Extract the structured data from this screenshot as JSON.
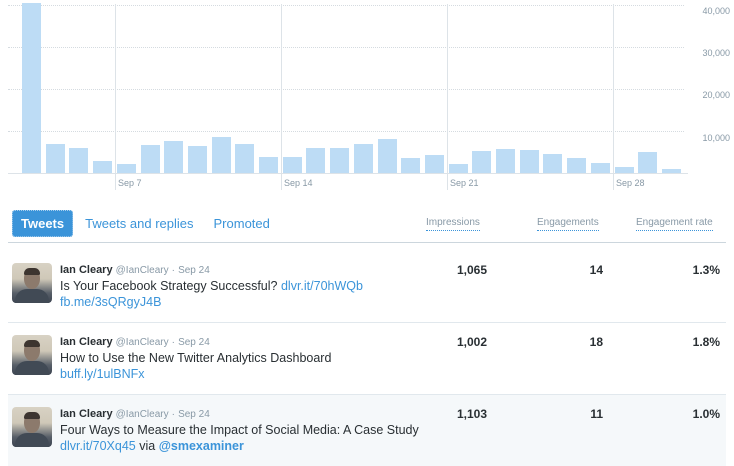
{
  "chart_data": {
    "type": "bar",
    "title": "",
    "xlabel": "",
    "ylabel": "Impressions",
    "ylim": [
      0,
      40000
    ],
    "y_ticks": [
      "10,000",
      "20,000",
      "30,000",
      "40,000"
    ],
    "x_tick_labels": [
      "Sep 7",
      "Sep 14",
      "Sep 21",
      "Sep 28"
    ],
    "grid": true,
    "categories": [
      "Sep 3",
      "Sep 4",
      "Sep 5",
      "Sep 6",
      "Sep 7",
      "Sep 8",
      "Sep 9",
      "Sep 10",
      "Sep 11",
      "Sep 12",
      "Sep 13",
      "Sep 14",
      "Sep 15",
      "Sep 16",
      "Sep 17",
      "Sep 18",
      "Sep 19",
      "Sep 20",
      "Sep 21",
      "Sep 22",
      "Sep 23",
      "Sep 24",
      "Sep 25",
      "Sep 26",
      "Sep 27",
      "Sep 28",
      "Sep 29",
      "Sep 30"
    ],
    "values": [
      40500,
      6900,
      6000,
      2900,
      2200,
      6700,
      7600,
      6500,
      8600,
      6900,
      3900,
      3800,
      6000,
      6000,
      7000,
      8200,
      3700,
      4400,
      2200,
      5300,
      5800,
      5600,
      4600,
      3700,
      2500,
      1500,
      5000,
      1000
    ]
  },
  "chart": {
    "y_labels": [
      "40,000",
      "30,000",
      "20,000",
      "10,000"
    ],
    "x_labels": [
      "Sep 7",
      "Sep 14",
      "Sep 21",
      "Sep 28"
    ]
  },
  "tabs": [
    {
      "label": "Tweets",
      "active": true
    },
    {
      "label": "Tweets and replies",
      "active": false
    },
    {
      "label": "Promoted",
      "active": false
    }
  ],
  "columns": {
    "impressions": "Impressions",
    "engagements": "Engagements",
    "rate": "Engagement rate"
  },
  "tweets": [
    {
      "name": "Ian Cleary",
      "handle": "@IanCleary",
      "sep": "·",
      "date": "Sep 24",
      "text": "Is Your Facebook Strategy Successful?",
      "link1": "dlvr.it/70hWQb",
      "link2": "fb.me/3sQRgyJ4B",
      "impressions": "1,065",
      "engagements": "14",
      "rate": "1.3%"
    },
    {
      "name": "Ian Cleary",
      "handle": "@IanCleary",
      "sep": "·",
      "date": "Sep 24",
      "text": "How to Use the New Twitter Analytics Dashboard",
      "link1": "buff.ly/1ulBNFx",
      "impressions": "1,002",
      "engagements": "18",
      "rate": "1.8%"
    },
    {
      "name": "Ian Cleary",
      "handle": "@IanCleary",
      "sep": "·",
      "date": "Sep 24",
      "text": "Four Ways to Measure the Impact of Social Media: A Case Study",
      "link1": "dlvr.it/70Xq45",
      "via": "via",
      "mention": "@smexaminer",
      "impressions": "1,103",
      "engagements": "11",
      "rate": "1.0%"
    }
  ],
  "colors": {
    "bar": "#bddcf5",
    "accent": "#3b94d9",
    "muted": "#8899a6",
    "text": "#292f33"
  }
}
